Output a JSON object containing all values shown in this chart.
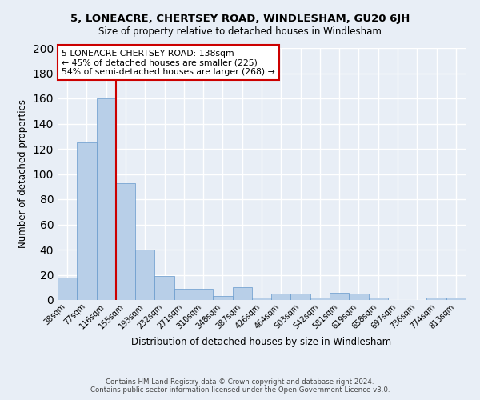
{
  "title": "5, LONEACRE, CHERTSEY ROAD, WINDLESHAM, GU20 6JH",
  "subtitle": "Size of property relative to detached houses in Windlesham",
  "xlabel": "Distribution of detached houses by size in Windlesham",
  "ylabel": "Number of detached properties",
  "bar_color": "#b8cfe8",
  "bar_edge_color": "#6699cc",
  "background_color": "#e8eef6",
  "grid_color": "#ffffff",
  "categories": [
    "38sqm",
    "77sqm",
    "116sqm",
    "155sqm",
    "193sqm",
    "232sqm",
    "271sqm",
    "310sqm",
    "348sqm",
    "387sqm",
    "426sqm",
    "464sqm",
    "503sqm",
    "542sqm",
    "581sqm",
    "619sqm",
    "658sqm",
    "697sqm",
    "736sqm",
    "774sqm",
    "813sqm"
  ],
  "values": [
    18,
    125,
    160,
    93,
    40,
    19,
    9,
    9,
    3,
    10,
    2,
    5,
    5,
    2,
    6,
    5,
    2,
    0,
    0,
    2,
    2
  ],
  "ylim": [
    0,
    200
  ],
  "yticks": [
    0,
    20,
    40,
    60,
    80,
    100,
    120,
    140,
    160,
    180,
    200
  ],
  "vline_color": "#cc0000",
  "annotation_title": "5 LONEACRE CHERTSEY ROAD: 138sqm",
  "annotation_line1": "← 45% of detached houses are smaller (225)",
  "annotation_line2": "54% of semi-detached houses are larger (268) →",
  "annotation_box_color": "#ffffff",
  "annotation_box_edge": "#cc0000",
  "footer1": "Contains HM Land Registry data © Crown copyright and database right 2024.",
  "footer2": "Contains public sector information licensed under the Open Government Licence v3.0."
}
